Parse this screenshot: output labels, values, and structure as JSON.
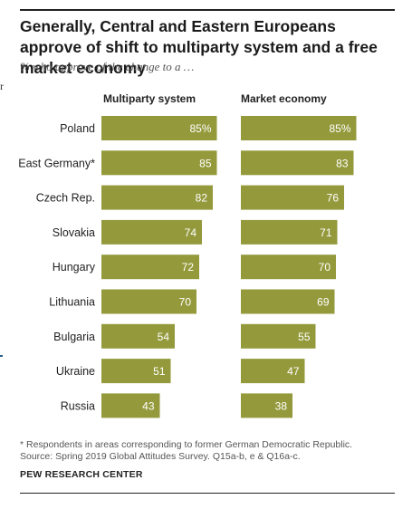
{
  "header": {
    "title": "Generally, Central and Eastern Europeans approve of shift to multiparty system and a free market economy",
    "subtitle": "% who approve of the change to a …"
  },
  "edge_fragment": "r",
  "chart_data": {
    "type": "bar",
    "orientation": "horizontal",
    "categories": [
      "Poland",
      "East Germany*",
      "Czech Rep.",
      "Slovakia",
      "Hungary",
      "Lithuania",
      "Bulgaria",
      "Ukraine",
      "Russia"
    ],
    "series": [
      {
        "name": "Multiparty system",
        "values": [
          85,
          85,
          82,
          74,
          72,
          70,
          54,
          51,
          43
        ]
      },
      {
        "name": "Market economy",
        "values": [
          85,
          83,
          76,
          71,
          70,
          69,
          55,
          47,
          38
        ]
      }
    ],
    "first_label_suffix": "%",
    "bar_color": "#949a3c",
    "label_color": "#ffffff",
    "xlim": [
      0,
      100
    ],
    "grid": false
  },
  "footer": {
    "footnote": "* Respondents in areas corresponding to former German Democratic Republic.",
    "source": "Source: Spring 2019 Global Attitudes Survey. Q15a-b, e & Q16a-c.",
    "brand": "PEW RESEARCH CENTER"
  }
}
